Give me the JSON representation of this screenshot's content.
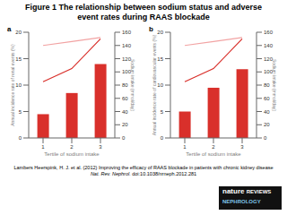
{
  "title": "Figure 1 The relationship between sodium status and adverse event rates during RAAS blockade",
  "chart_data": [
    {
      "type": "bar",
      "panel_label": "a",
      "categories": [
        "1",
        "2",
        "3"
      ],
      "xlabel": "Tertile of sodium intake",
      "ylabel": "Annual incidence rate of renal events (%)",
      "y2label": "Sodium intake (mmol/day)",
      "ylim": [
        0,
        20
      ],
      "yticks": [
        0,
        5,
        10,
        15,
        20
      ],
      "y2lim": [
        0,
        160
      ],
      "y2ticks": [
        0,
        20,
        40,
        60,
        80,
        100,
        120,
        140,
        160
      ],
      "series": [
        {
          "type": "bar",
          "color": "#d9302b",
          "values": [
            4.5,
            8.5,
            14
          ]
        },
        {
          "type": "line",
          "axis": "y2",
          "color": "#f2a3a3",
          "values": [
            140,
            146,
            152
          ]
        },
        {
          "type": "line",
          "axis": "y2",
          "color": "#d9302b",
          "values": [
            85,
            105,
            150
          ]
        }
      ]
    },
    {
      "type": "bar",
      "panel_label": "b",
      "categories": [
        "1",
        "2",
        "3"
      ],
      "xlabel": "Tertile of sodium intake",
      "ylabel": "Annual incidence rate of cardiovascular events (%)",
      "y2label": "Sodium intake (mmol/day)",
      "ylim": [
        0,
        20
      ],
      "yticks": [
        0,
        5,
        10,
        15,
        20
      ],
      "y2lim": [
        0,
        160
      ],
      "y2ticks": [
        0,
        20,
        40,
        60,
        80,
        100,
        120,
        140,
        160
      ],
      "series": [
        {
          "type": "bar",
          "color": "#d9302b",
          "values": [
            5,
            9.5,
            13
          ]
        },
        {
          "type": "line",
          "axis": "y2",
          "color": "#f2a3a3",
          "values": [
            140,
            146,
            152
          ]
        },
        {
          "type": "line",
          "axis": "y2",
          "color": "#d9302b",
          "values": [
            85,
            105,
            150
          ]
        }
      ]
    }
  ],
  "footer": {
    "citation": "Lambers Heerspink, H. J. et al. (2012) Improving the efficacy of RAAS blockade in patients with chronic kidney disease",
    "journal": "Nat. Rev. Nephrol.",
    "doi": "doi:10.1038/nrneph.2012.281",
    "logo": [
      "nature",
      "REVIEWS",
      "NEPHROLOGY"
    ]
  }
}
